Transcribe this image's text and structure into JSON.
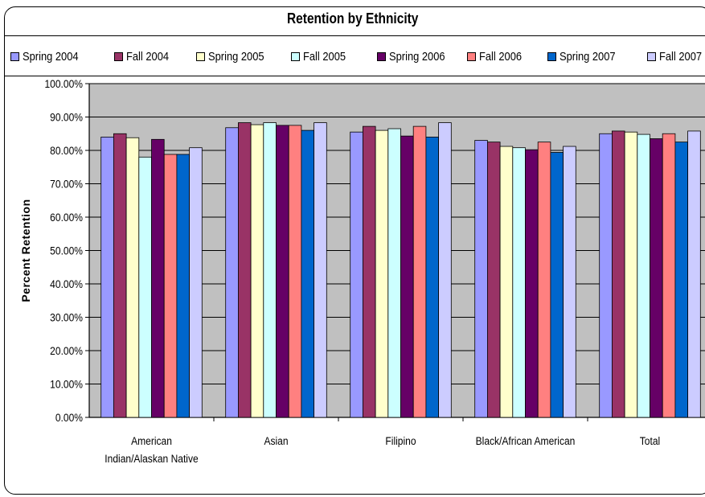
{
  "chart_data": {
    "type": "bar",
    "title": "Retention by Ethnicity",
    "xlabel": "",
    "ylabel": "Percent Retention",
    "ylim": [
      0,
      100
    ],
    "ytick_labels": [
      "0.00%",
      "10.00%",
      "20.00%",
      "30.00%",
      "40.00%",
      "50.00%",
      "60.00%",
      "70.00%",
      "80.00%",
      "90.00%",
      "100.00%"
    ],
    "categories": [
      "American Indian/Alaskan Native",
      "Asian",
      "Filipino",
      "Black/African American",
      "Total"
    ],
    "category_lines": [
      [
        "American",
        "Indian/Alaskan Native"
      ],
      [
        "Asian"
      ],
      [
        "Filipino"
      ],
      [
        "Black/African American"
      ],
      [
        "Total"
      ]
    ],
    "grid": true,
    "legend_position": "top",
    "plot_background": "#c0c0c0",
    "series": [
      {
        "name": "Spring 2004",
        "color": "#9999ff",
        "values": [
          84,
          86.8,
          85.5,
          83,
          85
        ]
      },
      {
        "name": "Fall 2004",
        "color": "#993366",
        "values": [
          85,
          88.3,
          87.2,
          82.5,
          85.8
        ]
      },
      {
        "name": "Spring 2005",
        "color": "#ffffcc",
        "values": [
          83.8,
          87.7,
          86,
          81.2,
          85.5
        ]
      },
      {
        "name": "Fall 2005",
        "color": "#ccffff",
        "values": [
          78,
          88.3,
          86.5,
          80.8,
          84.8
        ]
      },
      {
        "name": "Spring 2006",
        "color": "#660066",
        "values": [
          83.3,
          87.5,
          84.3,
          80.2,
          83.5
        ]
      },
      {
        "name": "Fall 2006",
        "color": "#ff8080",
        "values": [
          78.8,
          87.5,
          87.2,
          82.5,
          85
        ]
      },
      {
        "name": "Spring 2007",
        "color": "#0066cc",
        "values": [
          78.8,
          86,
          84,
          79.4,
          82.5
        ]
      },
      {
        "name": "Fall 2007",
        "color": "#ccccff",
        "values": [
          80.8,
          88.3,
          88.3,
          81.2,
          85.8
        ]
      }
    ]
  }
}
